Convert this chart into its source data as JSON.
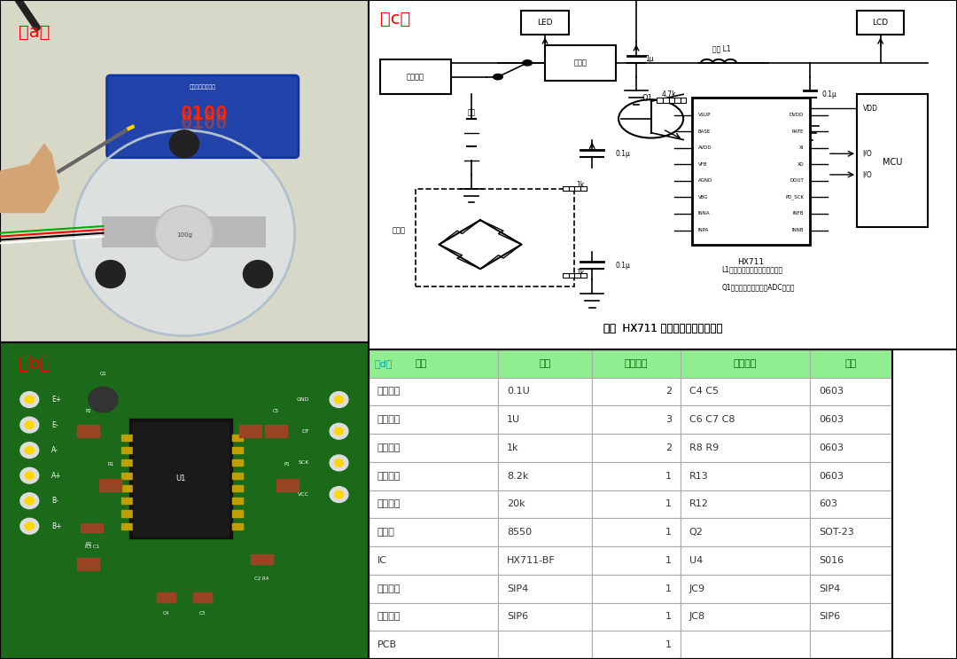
{
  "title": "",
  "panel_labels": {
    "a": "（a）",
    "b": "（b）",
    "c": "（c）",
    "d": "（d）"
  },
  "label_color": "#FF0000",
  "background_color": "#FFFFFF",
  "table": {
    "header": [
      "（d）名称",
      "规格",
      "单台数量",
      "元件编号",
      "封装"
    ],
    "header_bg": "#90EE90",
    "header_text_color": "#006600",
    "rows": [
      [
        "贴片电容",
        "0.1U",
        "2",
        "C4 C5",
        "0603"
      ],
      [
        "贴片电容",
        "1U",
        "3",
        "C6 C7 C8",
        "0603"
      ],
      [
        "贴片电阻",
        "1k",
        "2",
        "R8 R9",
        "0603"
      ],
      [
        "贴片电阻",
        "8.2k",
        "1",
        "R13",
        "0603"
      ],
      [
        "贴片电阻",
        "20k",
        "1",
        "R12",
        "603"
      ],
      [
        "三极管",
        "8550",
        "1",
        "Q2",
        "SOT-23"
      ],
      [
        "IC",
        "HX711-BF",
        "1",
        "U4",
        "S016"
      ],
      [
        "单排插针",
        "SIP4",
        "1",
        "JC9",
        "SIP4"
      ],
      [
        "单排插针",
        "SIP6",
        "1",
        "JC8",
        "SIP6"
      ],
      [
        "PCB",
        "",
        "1",
        "",
        ""
      ]
    ],
    "row_bg_odd": "#FFFFFF",
    "row_bg_even": "#FFFFFF",
    "text_color": "#333333",
    "border_color": "#AAAAAA",
    "col_aligns": [
      "left",
      "left",
      "right",
      "left",
      "left"
    ]
  },
  "circuit_caption": "图四  HX711 计价秤应用参考电路图",
  "circuit_notes": [
    "L1：用于隔离模拟与数字电源；",
    "Q1：用于关断传感器和ADC电源。"
  ],
  "circuit_bg": "#FFFFFF",
  "photo_a_bg": "#E8E8E0",
  "photo_b_bg": "#1A5C1A"
}
